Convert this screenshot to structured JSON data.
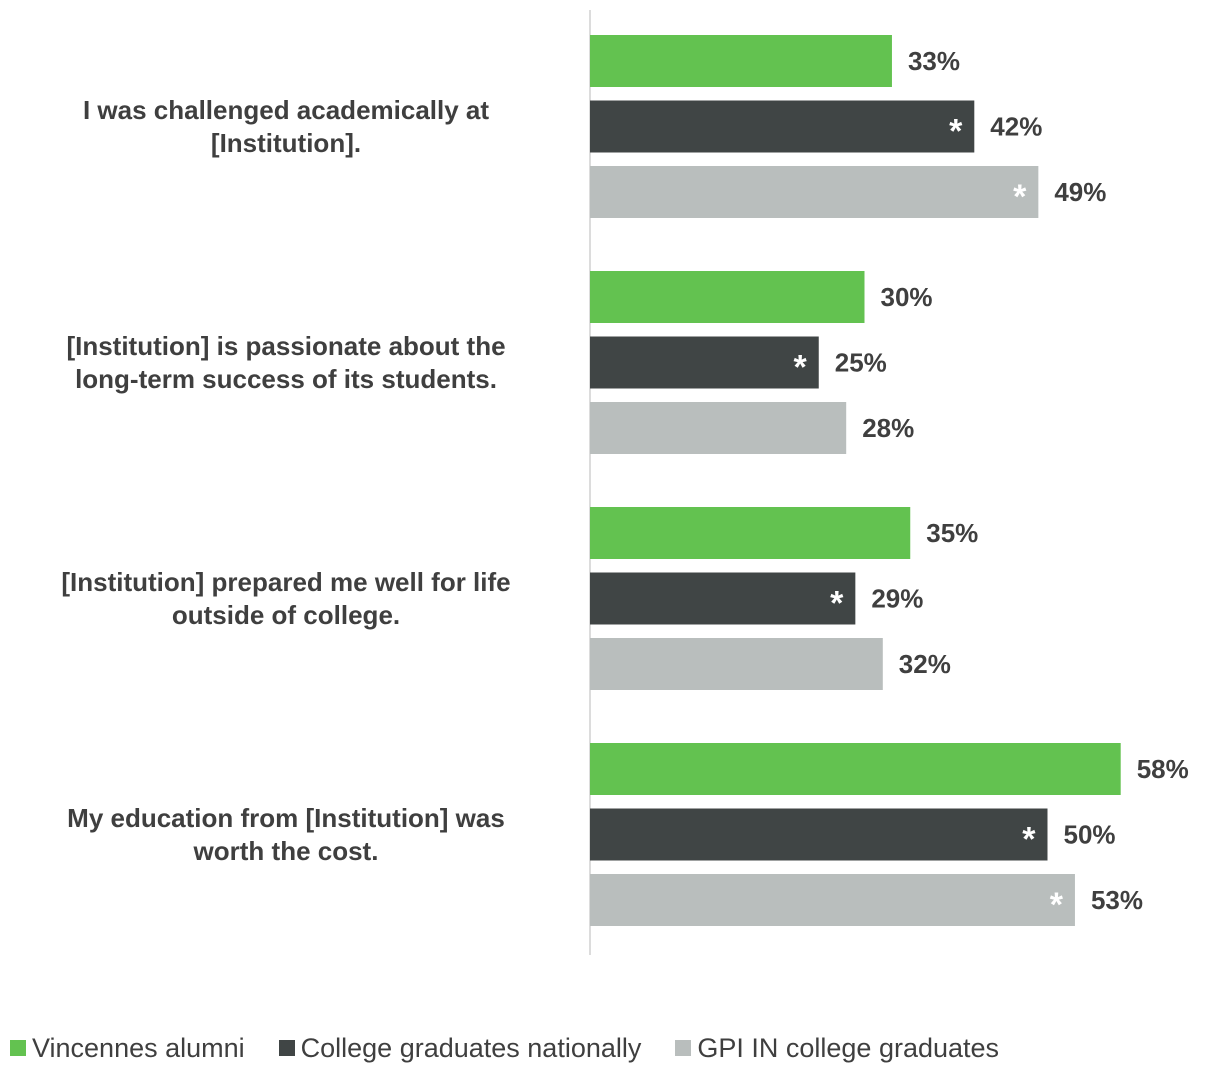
{
  "chart_data": {
    "type": "bar",
    "orientation": "horizontal",
    "categories": [
      [
        "I was challenged academically at",
        "[Institution]."
      ],
      [
        "[Institution] is passionate about the",
        "long-term success of its students."
      ],
      [
        "[Institution] prepared me well for life",
        "outside of college."
      ],
      [
        "My education from [Institution] was",
        "worth the cost."
      ]
    ],
    "series": [
      {
        "name": "Vincennes alumni",
        "color": "#63c250",
        "values": [
          33,
          30,
          35,
          58
        ],
        "labels": [
          "33%",
          "30%",
          "35%",
          "58%"
        ],
        "significant": [
          false,
          false,
          false,
          false
        ]
      },
      {
        "name": "College graduates nationally",
        "color": "#404545",
        "values": [
          42,
          25,
          29,
          50
        ],
        "labels": [
          "42%",
          "25%",
          "29%",
          "50%"
        ],
        "significant": [
          true,
          true,
          true,
          true
        ]
      },
      {
        "name": "GPI IN college graduates",
        "color": "#b9bebd",
        "values": [
          49,
          28,
          32,
          53
        ],
        "labels": [
          "49%",
          "28%",
          "32%",
          "53%"
        ],
        "significant": [
          true,
          false,
          false,
          true
        ]
      }
    ],
    "significance_marker": "*",
    "xlim": [
      0,
      60
    ],
    "legend_position": "bottom",
    "grid": false
  }
}
